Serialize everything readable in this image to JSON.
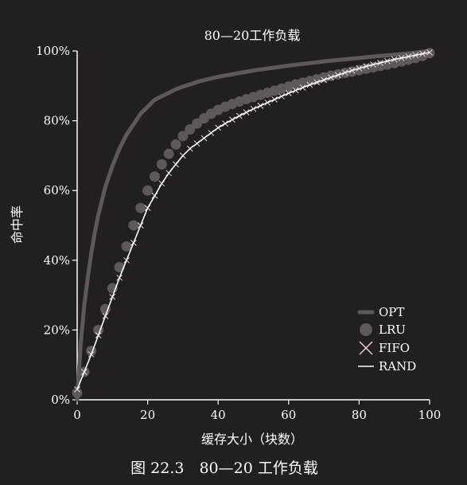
{
  "caption": "图 22.3　80—20 工作负载",
  "colors": {
    "background": "#231f20",
    "axis": "#ffffff",
    "opt": "#5e5859",
    "lru": "#5e5859",
    "fifo": "#e8d7d6",
    "rand": "#ffffff"
  },
  "chart_data": {
    "type": "line",
    "title": "80—20工作负载",
    "xlabel": "缓存大小（块数）",
    "ylabel": "命中率",
    "xlim": [
      0,
      100
    ],
    "ylim": [
      0,
      100
    ],
    "x_ticks": [
      "0",
      "20",
      "40",
      "60",
      "80",
      "100"
    ],
    "y_ticks": [
      "0%",
      "20%",
      "40%",
      "60%",
      "80%",
      "100%"
    ],
    "grid": false,
    "legend_position": "bottom-right",
    "series": [
      {
        "name": "OPT",
        "marker": "thick-line",
        "x": [
          0,
          1,
          2,
          3,
          4,
          5,
          6,
          8,
          10,
          12,
          14,
          16,
          18,
          20,
          22,
          25,
          28,
          30,
          35,
          40,
          45,
          50,
          55,
          60,
          65,
          70,
          75,
          80,
          85,
          90,
          95,
          100
        ],
        "y": [
          0,
          16,
          27,
          35,
          42,
          48,
          53,
          61,
          67,
          72,
          76,
          79,
          82,
          84,
          86,
          87.5,
          89,
          89.8,
          91.4,
          92.6,
          93.5,
          94.4,
          95.1,
          95.8,
          96.4,
          97,
          97.5,
          98,
          98.5,
          98.9,
          99.4,
          100
        ]
      },
      {
        "name": "LRU",
        "marker": "circle",
        "x": [
          0,
          2,
          4,
          6,
          8,
          10,
          12,
          14,
          16,
          18,
          20,
          22,
          24,
          26,
          28,
          30,
          32,
          34,
          36,
          38,
          40,
          42,
          44,
          46,
          48,
          50,
          52,
          54,
          56,
          58,
          60,
          62,
          64,
          66,
          68,
          70,
          72,
          74,
          76,
          78,
          80,
          82,
          84,
          86,
          88,
          90,
          92,
          94,
          96,
          98,
          100
        ],
        "y": [
          2,
          8,
          14,
          20,
          26,
          32,
          38,
          44,
          50,
          55,
          60,
          64,
          67.5,
          70.5,
          73.2,
          75.6,
          77.5,
          79.2,
          80.7,
          82,
          83.1,
          84,
          84.8,
          85.5,
          86.2,
          86.8,
          87.4,
          88,
          88.6,
          89.2,
          89.8,
          90.4,
          90.9,
          91.4,
          91.9,
          92.4,
          92.9,
          93.3,
          93.7,
          94.1,
          94.5,
          94.9,
          95.3,
          95.7,
          96.1,
          96.5,
          97,
          97.5,
          98,
          98.6,
          99.4
        ]
      },
      {
        "name": "FIFO",
        "marker": "x",
        "x": [
          0,
          2,
          4,
          6,
          8,
          10,
          12,
          14,
          16,
          18,
          20,
          22,
          24,
          26,
          28,
          30,
          32,
          34,
          36,
          38,
          40,
          42,
          44,
          46,
          48,
          50,
          52,
          54,
          56,
          58,
          60,
          62,
          64,
          66,
          68,
          70,
          72,
          74,
          76,
          78,
          80,
          82,
          84,
          86,
          88,
          90,
          92,
          94,
          96,
          98,
          100
        ],
        "y": [
          3,
          8,
          13,
          18.5,
          24,
          29.5,
          35,
          40,
          45,
          50,
          55,
          58.5,
          62,
          65,
          67.5,
          70,
          72,
          73.5,
          75,
          76.5,
          78,
          79.2,
          80.3,
          81.4,
          82.4,
          83.4,
          84.3,
          85.2,
          86.1,
          87,
          87.9,
          88.7,
          89.5,
          90.3,
          91,
          91.7,
          92.4,
          93.1,
          93.8,
          94.4,
          95,
          95.6,
          96.1,
          96.6,
          97.1,
          97.6,
          98,
          98.4,
          98.8,
          99.2,
          99.6
        ]
      },
      {
        "name": "RAND",
        "marker": "thin-line",
        "x": [
          0,
          2,
          4,
          6,
          8,
          10,
          12,
          14,
          16,
          18,
          20,
          22,
          24,
          26,
          28,
          30,
          32,
          34,
          36,
          38,
          40,
          42,
          44,
          46,
          48,
          50,
          52,
          54,
          56,
          58,
          60,
          62,
          64,
          66,
          68,
          70,
          72,
          74,
          76,
          78,
          80,
          82,
          84,
          86,
          88,
          90,
          92,
          94,
          96,
          98,
          100
        ],
        "y": [
          3,
          8,
          13,
          18.5,
          24,
          29.5,
          35,
          40,
          45,
          50,
          55,
          58.5,
          62,
          65,
          67.5,
          70,
          72,
          73.5,
          75,
          76.5,
          78,
          79.2,
          80.3,
          81.4,
          82.4,
          83.4,
          84.3,
          85.2,
          86.1,
          87,
          87.9,
          88.7,
          89.5,
          90.3,
          91,
          91.7,
          92.4,
          93.1,
          93.8,
          94.4,
          95,
          95.6,
          96.1,
          96.6,
          97.1,
          97.6,
          98,
          98.4,
          98.8,
          99.2,
          99.6
        ]
      }
    ]
  }
}
